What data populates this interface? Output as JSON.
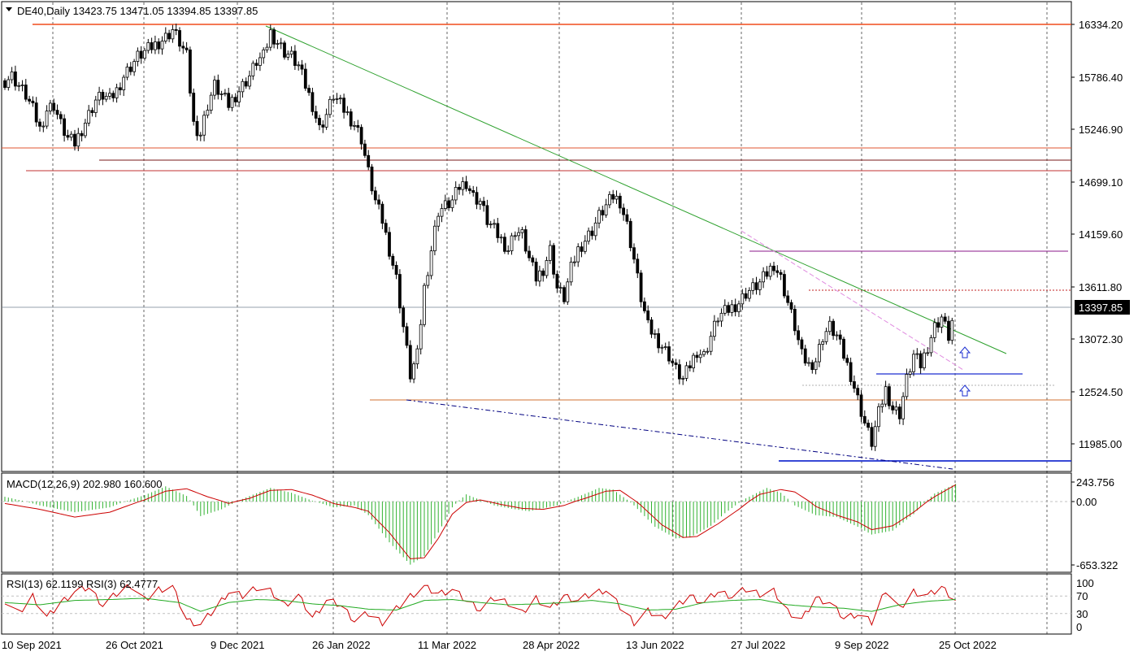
{
  "chart_data": {
    "type": "candlestick",
    "symbol_line": "DE40,Daily  13423.75 13471.05 13394.85 13397.85",
    "price_axis": {
      "ticks": [
        "16334.20",
        "15786.40",
        "15246.90",
        "14699.10",
        "14159.60",
        "13611.80",
        "13072.30",
        "12524.50",
        "11985.00"
      ],
      "tick_values": [
        16334.2,
        15786.4,
        15246.9,
        14699.1,
        14159.6,
        13611.8,
        13072.3,
        12524.5,
        11985.0
      ],
      "current_label": "13397.85",
      "current_value": 13397.85
    },
    "x_axis": {
      "ticks": [
        "10 Sep 2021",
        "26 Oct 2021",
        "9 Dec 2021",
        "26 Jan 2022",
        "11 Mar 2022",
        "28 Apr 2022",
        "13 Jun 2022",
        "27 Jul 2022",
        "9 Sep 2022",
        "25 Oct 2022"
      ]
    },
    "price_series": [
      [
        0,
        15750
      ],
      [
        2,
        15800
      ],
      [
        4,
        15700
      ],
      [
        6,
        15600
      ],
      [
        8,
        15450
      ],
      [
        10,
        15250
      ],
      [
        12,
        15450
      ],
      [
        14,
        15500
      ],
      [
        16,
        15300
      ],
      [
        18,
        15150
      ],
      [
        20,
        15100
      ],
      [
        22,
        15250
      ],
      [
        24,
        15400
      ],
      [
        26,
        15550
      ],
      [
        28,
        15600
      ],
      [
        30,
        15550
      ],
      [
        32,
        15650
      ],
      [
        34,
        15800
      ],
      [
        36,
        15900
      ],
      [
        38,
        16000
      ],
      [
        40,
        16050
      ],
      [
        42,
        16100
      ],
      [
        44,
        16150
      ],
      [
        46,
        16200
      ],
      [
        48,
        16280
      ],
      [
        50,
        16150
      ],
      [
        52,
        16000
      ],
      [
        54,
        15300
      ],
      [
        56,
        15200
      ],
      [
        58,
        15500
      ],
      [
        60,
        15700
      ],
      [
        62,
        15600
      ],
      [
        64,
        15500
      ],
      [
        66,
        15600
      ],
      [
        68,
        15700
      ],
      [
        70,
        15800
      ],
      [
        72,
        15950
      ],
      [
        74,
        16000
      ],
      [
        76,
        16250
      ],
      [
        78,
        16150
      ],
      [
        80,
        16050
      ],
      [
        82,
        16000
      ],
      [
        84,
        15900
      ],
      [
        86,
        15700
      ],
      [
        88,
        15500
      ],
      [
        90,
        15250
      ],
      [
        92,
        15400
      ],
      [
        94,
        15600
      ],
      [
        96,
        15500
      ],
      [
        98,
        15400
      ],
      [
        100,
        15300
      ],
      [
        102,
        15150
      ],
      [
        104,
        14800
      ],
      [
        106,
        14500
      ],
      [
        108,
        14300
      ],
      [
        110,
        14000
      ],
      [
        112,
        13700
      ],
      [
        114,
        13200
      ],
      [
        116,
        12700
      ],
      [
        118,
        12900
      ],
      [
        120,
        13600
      ],
      [
        122,
        14000
      ],
      [
        124,
        14400
      ],
      [
        126,
        14450
      ],
      [
        128,
        14500
      ],
      [
        130,
        14650
      ],
      [
        132,
        14700
      ],
      [
        134,
        14550
      ],
      [
        136,
        14500
      ],
      [
        138,
        14300
      ],
      [
        140,
        14200
      ],
      [
        142,
        14100
      ],
      [
        144,
        14000
      ],
      [
        146,
        14200
      ],
      [
        148,
        14150
      ],
      [
        150,
        13900
      ],
      [
        152,
        13700
      ],
      [
        154,
        13800
      ],
      [
        156,
        14000
      ],
      [
        158,
        13600
      ],
      [
        160,
        13500
      ],
      [
        162,
        13800
      ],
      [
        164,
        14000
      ],
      [
        166,
        14100
      ],
      [
        168,
        14200
      ],
      [
        170,
        14350
      ],
      [
        172,
        14450
      ],
      [
        174,
        14550
      ],
      [
        176,
        14500
      ],
      [
        178,
        14250
      ],
      [
        180,
        13900
      ],
      [
        182,
        13500
      ],
      [
        184,
        13200
      ],
      [
        186,
        13100
      ],
      [
        188,
        13000
      ],
      [
        190,
        12900
      ],
      [
        192,
        12750
      ],
      [
        194,
        12650
      ],
      [
        196,
        12800
      ],
      [
        198,
        12950
      ],
      [
        200,
        12900
      ],
      [
        202,
        13100
      ],
      [
        204,
        13300
      ],
      [
        206,
        13350
      ],
      [
        208,
        13400
      ],
      [
        210,
        13450
      ],
      [
        212,
        13550
      ],
      [
        214,
        13600
      ],
      [
        216,
        13650
      ],
      [
        218,
        13750
      ],
      [
        220,
        13850
      ],
      [
        222,
        13700
      ],
      [
        224,
        13450
      ],
      [
        226,
        13200
      ],
      [
        228,
        12900
      ],
      [
        230,
        12800
      ],
      [
        232,
        12850
      ],
      [
        234,
        13100
      ],
      [
        236,
        13200
      ],
      [
        238,
        13100
      ],
      [
        240,
        12900
      ],
      [
        242,
        12700
      ],
      [
        244,
        12450
      ],
      [
        246,
        12200
      ],
      [
        248,
        12000
      ],
      [
        250,
        12300
      ],
      [
        252,
        12550
      ],
      [
        254,
        12350
      ],
      [
        256,
        12300
      ],
      [
        258,
        12650
      ],
      [
        260,
        12900
      ],
      [
        262,
        12800
      ],
      [
        264,
        13000
      ],
      [
        266,
        13200
      ],
      [
        268,
        13300
      ],
      [
        270,
        13100
      ],
      [
        272,
        13400
      ]
    ],
    "macd": {
      "label": "MACD(12,26,9) 202.980 160.600",
      "ticks": [
        "243.756",
        "0.00",
        "-653.322"
      ],
      "tick_values": [
        243.756,
        0,
        -653.322
      ],
      "histogram": [
        [
          0,
          60
        ],
        [
          10,
          -40
        ],
        [
          20,
          -110
        ],
        [
          30,
          -60
        ],
        [
          40,
          80
        ],
        [
          46,
          190
        ],
        [
          52,
          70
        ],
        [
          56,
          -150
        ],
        [
          62,
          -80
        ],
        [
          70,
          70
        ],
        [
          76,
          170
        ],
        [
          82,
          110
        ],
        [
          88,
          10
        ],
        [
          94,
          -60
        ],
        [
          100,
          -40
        ],
        [
          104,
          -140
        ],
        [
          110,
          -420
        ],
        [
          116,
          -650
        ],
        [
          120,
          -560
        ],
        [
          124,
          -320
        ],
        [
          128,
          -60
        ],
        [
          132,
          90
        ],
        [
          136,
          20
        ],
        [
          140,
          -40
        ],
        [
          146,
          -80
        ],
        [
          150,
          -100
        ],
        [
          154,
          -70
        ],
        [
          158,
          -40
        ],
        [
          164,
          60
        ],
        [
          170,
          170
        ],
        [
          174,
          150
        ],
        [
          180,
          -40
        ],
        [
          186,
          -260
        ],
        [
          192,
          -380
        ],
        [
          196,
          -370
        ],
        [
          202,
          -250
        ],
        [
          206,
          -120
        ],
        [
          212,
          40
        ],
        [
          218,
          170
        ],
        [
          222,
          110
        ],
        [
          226,
          -40
        ],
        [
          232,
          -140
        ],
        [
          238,
          -160
        ],
        [
          244,
          -260
        ],
        [
          248,
          -340
        ],
        [
          254,
          -300
        ],
        [
          260,
          -130
        ],
        [
          266,
          100
        ],
        [
          272,
          220
        ]
      ],
      "signal": [
        [
          0,
          -20
        ],
        [
          10,
          -80
        ],
        [
          20,
          -160
        ],
        [
          30,
          -110
        ],
        [
          40,
          20
        ],
        [
          46,
          130
        ],
        [
          52,
          160
        ],
        [
          58,
          60
        ],
        [
          64,
          -20
        ],
        [
          70,
          40
        ],
        [
          76,
          140
        ],
        [
          82,
          150
        ],
        [
          88,
          80
        ],
        [
          94,
          -20
        ],
        [
          100,
          -60
        ],
        [
          104,
          -100
        ],
        [
          110,
          -320
        ],
        [
          116,
          -590
        ],
        [
          120,
          -580
        ],
        [
          124,
          -380
        ],
        [
          128,
          -130
        ],
        [
          132,
          -10
        ],
        [
          136,
          20
        ],
        [
          142,
          -30
        ],
        [
          148,
          -70
        ],
        [
          154,
          -80
        ],
        [
          160,
          -40
        ],
        [
          166,
          40
        ],
        [
          172,
          130
        ],
        [
          176,
          140
        ],
        [
          182,
          -40
        ],
        [
          188,
          -240
        ],
        [
          194,
          -370
        ],
        [
          198,
          -360
        ],
        [
          204,
          -230
        ],
        [
          210,
          -80
        ],
        [
          216,
          90
        ],
        [
          222,
          150
        ],
        [
          226,
          120
        ],
        [
          232,
          -50
        ],
        [
          238,
          -140
        ],
        [
          244,
          -210
        ],
        [
          248,
          -290
        ],
        [
          254,
          -250
        ],
        [
          260,
          -110
        ],
        [
          266,
          60
        ],
        [
          272,
          210
        ]
      ]
    },
    "rsi": {
      "label": "RSI(13) 62.1199  RSI(3) 62.4777",
      "ticks": [
        "100",
        "70",
        "30",
        "0"
      ],
      "tick_values": [
        100,
        70,
        30,
        0
      ],
      "rsi3": [
        [
          0,
          60
        ],
        [
          4,
          30
        ],
        [
          8,
          70
        ],
        [
          12,
          20
        ],
        [
          16,
          55
        ],
        [
          20,
          80
        ],
        [
          24,
          90
        ],
        [
          28,
          50
        ],
        [
          32,
          75
        ],
        [
          36,
          95
        ],
        [
          40,
          60
        ],
        [
          44,
          85
        ],
        [
          48,
          90
        ],
        [
          52,
          15
        ],
        [
          56,
          5
        ],
        [
          60,
          40
        ],
        [
          64,
          80
        ],
        [
          68,
          70
        ],
        [
          72,
          90
        ],
        [
          76,
          80
        ],
        [
          80,
          50
        ],
        [
          84,
          70
        ],
        [
          88,
          20
        ],
        [
          92,
          60
        ],
        [
          96,
          50
        ],
        [
          100,
          15
        ],
        [
          104,
          30
        ],
        [
          108,
          10
        ],
        [
          112,
          40
        ],
        [
          116,
          70
        ],
        [
          120,
          90
        ],
        [
          124,
          75
        ],
        [
          128,
          85
        ],
        [
          132,
          60
        ],
        [
          136,
          40
        ],
        [
          140,
          65
        ],
        [
          144,
          55
        ],
        [
          148,
          30
        ],
        [
          152,
          65
        ],
        [
          156,
          40
        ],
        [
          160,
          70
        ],
        [
          164,
          60
        ],
        [
          168,
          75
        ],
        [
          172,
          85
        ],
        [
          176,
          45
        ],
        [
          180,
          10
        ],
        [
          184,
          35
        ],
        [
          188,
          20
        ],
        [
          192,
          45
        ],
        [
          196,
          70
        ],
        [
          200,
          55
        ],
        [
          204,
          80
        ],
        [
          208,
          70
        ],
        [
          212,
          85
        ],
        [
          216,
          75
        ],
        [
          220,
          80
        ],
        [
          224,
          35
        ],
        [
          228,
          15
        ],
        [
          232,
          65
        ],
        [
          236,
          55
        ],
        [
          240,
          20
        ],
        [
          244,
          30
        ],
        [
          248,
          10
        ],
        [
          252,
          85
        ],
        [
          256,
          40
        ],
        [
          260,
          80
        ],
        [
          264,
          70
        ],
        [
          268,
          90
        ],
        [
          272,
          60
        ]
      ],
      "rsi13": [
        [
          0,
          55
        ],
        [
          10,
          50
        ],
        [
          20,
          60
        ],
        [
          30,
          62
        ],
        [
          40,
          65
        ],
        [
          50,
          55
        ],
        [
          56,
          35
        ],
        [
          64,
          55
        ],
        [
          72,
          62
        ],
        [
          80,
          60
        ],
        [
          88,
          52
        ],
        [
          96,
          48
        ],
        [
          104,
          40
        ],
        [
          112,
          38
        ],
        [
          120,
          60
        ],
        [
          128,
          62
        ],
        [
          136,
          55
        ],
        [
          144,
          50
        ],
        [
          152,
          52
        ],
        [
          160,
          55
        ],
        [
          168,
          60
        ],
        [
          176,
          52
        ],
        [
          184,
          38
        ],
        [
          192,
          40
        ],
        [
          200,
          55
        ],
        [
          208,
          60
        ],
        [
          216,
          62
        ],
        [
          224,
          50
        ],
        [
          232,
          45
        ],
        [
          240,
          42
        ],
        [
          248,
          35
        ],
        [
          256,
          50
        ],
        [
          264,
          58
        ],
        [
          272,
          62
        ]
      ]
    }
  }
}
